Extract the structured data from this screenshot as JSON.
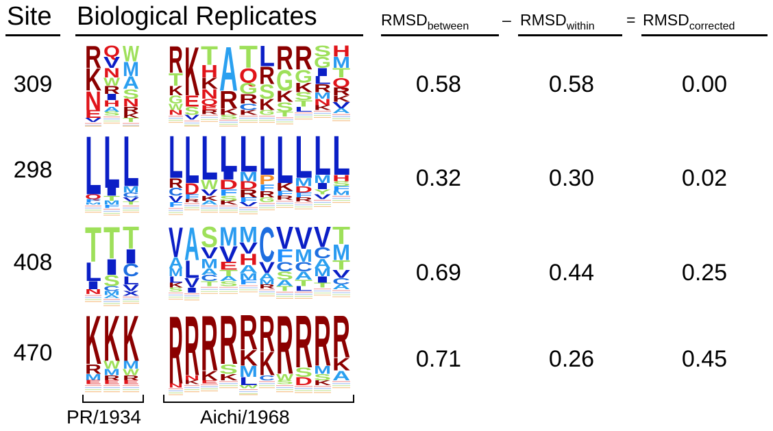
{
  "headers": {
    "site": "Site",
    "replicates": "Biological Replicates",
    "rmsd": "RMSD",
    "between": "between",
    "within": "within",
    "corrected": "corrected",
    "minus": "–",
    "equals": "="
  },
  "strains": [
    "PR/1934",
    "Aichi/1968"
  ],
  "rows": [
    {
      "site": "309",
      "between": "0.58",
      "within": "0.58",
      "corrected": "0.00",
      "logos": [
        [
          [
            "R",
            0.28
          ],
          [
            "K",
            0.28
          ],
          [
            "N",
            0.24
          ],
          [
            "E",
            0.1
          ],
          [
            "V",
            0.05
          ]
        ],
        [
          [
            "Q",
            0.14
          ],
          [
            "V",
            0.14
          ],
          [
            "N",
            0.12
          ],
          [
            "W",
            0.1
          ],
          [
            "R",
            0.1
          ],
          [
            "I",
            0.08
          ],
          [
            "H",
            0.08
          ],
          [
            "A",
            0.06
          ],
          [
            "S",
            0.05
          ]
        ],
        [
          [
            "W",
            0.2
          ],
          [
            "M",
            0.18
          ],
          [
            "A",
            0.16
          ],
          [
            "S",
            0.12
          ],
          [
            "N",
            0.1
          ],
          [
            "R",
            0.08
          ],
          [
            "K",
            0.06
          ],
          [
            "T",
            0.05
          ]
        ],
        [
          [
            "R",
            0.34
          ],
          [
            "T",
            0.16
          ],
          [
            "K",
            0.12
          ],
          [
            "G",
            0.1
          ],
          [
            "W",
            0.08
          ],
          [
            "N",
            0.06
          ]
        ],
        [
          [
            "K",
            0.62
          ],
          [
            "E",
            0.14
          ],
          [
            "S",
            0.1
          ],
          [
            "V",
            0.06
          ]
        ],
        [
          [
            "T",
            0.24
          ],
          [
            "H",
            0.16
          ],
          [
            "K",
            0.14
          ],
          [
            "N",
            0.12
          ],
          [
            "Q",
            0.08
          ],
          [
            "E",
            0.06
          ],
          [
            "R",
            0.05
          ]
        ],
        [
          [
            "A",
            0.56
          ],
          [
            "R",
            0.22
          ],
          [
            "K",
            0.08
          ],
          [
            "S",
            0.05
          ]
        ],
        [
          [
            "T",
            0.28
          ],
          [
            "Q",
            0.18
          ],
          [
            "G",
            0.14
          ],
          [
            "R",
            0.12
          ],
          [
            "C",
            0.08
          ],
          [
            "K",
            0.06
          ]
        ],
        [
          [
            "L",
            0.26
          ],
          [
            "R",
            0.22
          ],
          [
            "S",
            0.18
          ],
          [
            "K",
            0.14
          ],
          [
            "G",
            0.06
          ]
        ],
        [
          [
            "R",
            0.3
          ],
          [
            "G",
            0.26
          ],
          [
            "K",
            0.14
          ],
          [
            "S",
            0.12
          ],
          [
            "T",
            0.06
          ]
        ],
        [
          [
            "R",
            0.3
          ],
          [
            "G",
            0.16
          ],
          [
            "K",
            0.12
          ],
          [
            "S",
            0.1
          ],
          [
            "T",
            0.08
          ],
          [
            "L",
            0.06
          ]
        ],
        [
          [
            "S",
            0.14
          ],
          [
            "G",
            0.14
          ],
          [
            "I",
            0.1
          ],
          [
            "L",
            0.1
          ],
          [
            "R",
            0.1
          ],
          [
            "M",
            0.08
          ],
          [
            "N",
            0.08
          ],
          [
            "K",
            0.06
          ]
        ],
        [
          [
            "H",
            0.14
          ],
          [
            "M",
            0.14
          ],
          [
            "T",
            0.12
          ],
          [
            "Q",
            0.12
          ],
          [
            "R",
            0.1
          ],
          [
            "K",
            0.08
          ],
          [
            "V",
            0.08
          ],
          [
            "A",
            0.06
          ]
        ]
      ]
    },
    {
      "site": "298",
      "between": "0.32",
      "within": "0.30",
      "corrected": "0.02",
      "logos": [
        [
          [
            "L",
            0.74
          ],
          [
            "Q",
            0.06
          ],
          [
            "F",
            0.04
          ],
          [
            "M",
            0.03
          ]
        ],
        [
          [
            "L",
            0.66
          ],
          [
            "I",
            0.1
          ],
          [
            "T",
            0.06
          ],
          [
            "M",
            0.05
          ],
          [
            "F",
            0.04
          ]
        ],
        [
          [
            "L",
            0.64
          ],
          [
            "M",
            0.08
          ],
          [
            "C",
            0.06
          ],
          [
            "V",
            0.05
          ],
          [
            "T",
            0.04
          ]
        ],
        [
          [
            "L",
            0.54
          ],
          [
            "R",
            0.12
          ],
          [
            "C",
            0.1
          ],
          [
            "V",
            0.08
          ],
          [
            "F",
            0.06
          ]
        ],
        [
          [
            "L",
            0.6
          ],
          [
            "D",
            0.14
          ],
          [
            "F",
            0.06
          ],
          [
            "R",
            0.04
          ]
        ],
        [
          [
            "L",
            0.56
          ],
          [
            "W",
            0.12
          ],
          [
            "V",
            0.08
          ],
          [
            "K",
            0.06
          ],
          [
            "A",
            0.05
          ]
        ],
        [
          [
            "L",
            0.46
          ],
          [
            "I",
            0.1
          ],
          [
            "D",
            0.12
          ],
          [
            "F",
            0.08
          ],
          [
            "S",
            0.06
          ],
          [
            "K",
            0.05
          ]
        ],
        [
          [
            "L",
            0.46
          ],
          [
            "M",
            0.12
          ],
          [
            "D",
            0.1
          ],
          [
            "R",
            0.1
          ],
          [
            "F",
            0.06
          ],
          [
            "V",
            0.05
          ]
        ],
        [
          [
            "L",
            0.5
          ],
          [
            "P",
            0.12
          ],
          [
            "F",
            0.08
          ],
          [
            "R",
            0.08
          ],
          [
            "G",
            0.06
          ]
        ],
        [
          [
            "L",
            0.6
          ],
          [
            "K",
            0.1
          ],
          [
            "F",
            0.06
          ],
          [
            "R",
            0.05
          ]
        ],
        [
          [
            "L",
            0.54
          ],
          [
            "M",
            0.1
          ],
          [
            "D",
            0.08
          ],
          [
            "F",
            0.06
          ],
          [
            "R",
            0.05
          ]
        ],
        [
          [
            "L",
            0.5
          ],
          [
            "M",
            0.1
          ],
          [
            "I",
            0.08
          ],
          [
            "Y",
            0.06
          ],
          [
            "V",
            0.06
          ]
        ],
        [
          [
            "L",
            0.5
          ],
          [
            "H",
            0.08
          ],
          [
            "S",
            0.06
          ],
          [
            "F",
            0.06
          ],
          [
            "M",
            0.05
          ]
        ]
      ]
    },
    {
      "site": "408",
      "between": "0.69",
      "within": "0.44",
      "corrected": "0.25",
      "logos": [
        [
          [
            "T",
            0.44
          ],
          [
            "L",
            0.24
          ],
          [
            "I",
            0.1
          ],
          [
            "N",
            0.06
          ]
        ],
        [
          [
            "T",
            0.4
          ],
          [
            "I",
            0.2
          ],
          [
            "S",
            0.14
          ],
          [
            "C",
            0.06
          ],
          [
            "M",
            0.05
          ],
          [
            "A",
            0.04
          ]
        ],
        [
          [
            "T",
            0.28
          ],
          [
            "I",
            0.18
          ],
          [
            "C",
            0.16
          ],
          [
            "L",
            0.1
          ],
          [
            "V",
            0.08
          ],
          [
            "X",
            0.06
          ]
        ],
        [
          [
            "V",
            0.38
          ],
          [
            "A",
            0.14
          ],
          [
            "M",
            0.1
          ],
          [
            "L",
            0.08
          ],
          [
            "K",
            0.06
          ],
          [
            "S",
            0.05
          ]
        ],
        [
          [
            "A",
            0.42
          ],
          [
            "L",
            0.22
          ],
          [
            "V",
            0.12
          ],
          [
            "I",
            0.06
          ]
        ],
        [
          [
            "S",
            0.26
          ],
          [
            "V",
            0.14
          ],
          [
            "M",
            0.12
          ],
          [
            "A",
            0.08
          ],
          [
            "C",
            0.08
          ],
          [
            "T",
            0.06
          ]
        ],
        [
          [
            "M",
            0.24
          ],
          [
            "V",
            0.2
          ],
          [
            "E",
            0.1
          ],
          [
            "T",
            0.08
          ],
          [
            "A",
            0.06
          ],
          [
            "S",
            0.06
          ]
        ],
        [
          [
            "M",
            0.2
          ],
          [
            "V",
            0.14
          ],
          [
            "H",
            0.14
          ],
          [
            "A",
            0.1
          ],
          [
            "M",
            0.08
          ],
          [
            "F",
            0.06
          ]
        ],
        [
          [
            "C",
            0.44
          ],
          [
            "V",
            0.14
          ],
          [
            "A",
            0.08
          ],
          [
            "M",
            0.06
          ],
          [
            "R",
            0.05
          ]
        ],
        [
          [
            "V",
            0.28
          ],
          [
            "F",
            0.16
          ],
          [
            "C",
            0.12
          ],
          [
            "S",
            0.1
          ],
          [
            "A",
            0.08
          ],
          [
            "T",
            0.06
          ]
        ],
        [
          [
            "V",
            0.28
          ],
          [
            "M",
            0.16
          ],
          [
            "C",
            0.12
          ],
          [
            "A",
            0.1
          ],
          [
            "T",
            0.08
          ],
          [
            "L",
            0.06
          ]
        ],
        [
          [
            "V",
            0.26
          ],
          [
            "C",
            0.14
          ],
          [
            "A",
            0.12
          ],
          [
            "M",
            0.1
          ],
          [
            "I",
            0.08
          ],
          [
            "T",
            0.06
          ]
        ],
        [
          [
            "T",
            0.22
          ],
          [
            "M",
            0.2
          ],
          [
            "T",
            0.12
          ],
          [
            "V",
            0.1
          ],
          [
            "C",
            0.08
          ],
          [
            "A",
            0.06
          ]
        ]
      ]
    },
    {
      "site": "470",
      "between": "0.71",
      "within": "0.26",
      "corrected": "0.45",
      "logos": [
        [
          [
            "K",
            0.62
          ],
          [
            "R",
            0.12
          ],
          [
            "M",
            0.08
          ],
          [
            "E",
            0.05
          ]
        ],
        [
          [
            "K",
            0.58
          ],
          [
            "W",
            0.1
          ],
          [
            "M",
            0.08
          ],
          [
            "R",
            0.06
          ],
          [
            "E",
            0.05
          ]
        ],
        [
          [
            "K",
            0.58
          ],
          [
            "M",
            0.1
          ],
          [
            "W",
            0.08
          ],
          [
            "R",
            0.06
          ],
          [
            "E",
            0.05
          ]
        ],
        [
          [
            "R",
            0.86
          ],
          [
            "N",
            0.05
          ]
        ],
        [
          [
            "R",
            0.76
          ],
          [
            "N",
            0.06
          ],
          [
            "K",
            0.05
          ]
        ],
        [
          [
            "R",
            0.7
          ],
          [
            "K",
            0.12
          ],
          [
            "E",
            0.04
          ]
        ],
        [
          [
            "R",
            0.62
          ],
          [
            "S",
            0.12
          ],
          [
            "K",
            0.08
          ]
        ],
        [
          [
            "R",
            0.44
          ],
          [
            "K",
            0.2
          ],
          [
            "M",
            0.14
          ],
          [
            "L",
            0.1
          ],
          [
            "W",
            0.04
          ]
        ],
        [
          [
            "R",
            0.46
          ],
          [
            "K",
            0.3
          ],
          [
            "C",
            0.06
          ]
        ],
        [
          [
            "R",
            0.74
          ],
          [
            "W",
            0.08
          ],
          [
            "S",
            0.05
          ]
        ],
        [
          [
            "R",
            0.66
          ],
          [
            "S",
            0.12
          ],
          [
            "D",
            0.1
          ]
        ],
        [
          [
            "R",
            0.64
          ],
          [
            "M",
            0.1
          ],
          [
            "S",
            0.08
          ],
          [
            "K",
            0.06
          ]
        ],
        [
          [
            "R",
            0.54
          ],
          [
            "K",
            0.16
          ],
          [
            "A",
            0.12
          ]
        ]
      ]
    }
  ],
  "colors": {
    "K": "#8b0000",
    "R": "#8b0000",
    "H": "#e0141a",
    "D": "#e0141a",
    "E": "#e0141a",
    "N": "#e0141a",
    "Q": "#e0141a",
    "L": "#0b1fc6",
    "I": "#0b1fc6",
    "V": "#0b1fc6",
    "F": "#1e90ff",
    "M": "#2a9bf0",
    "C": "#1e6ee0",
    "A": "#2aa0f0",
    "W": "#9ee05a",
    "Y": "#9ee05a",
    "P": "#f28c28",
    "S": "#9ee05a",
    "T": "#9ee05a",
    "G": "#9ee05a",
    "X": "#0b1fc6"
  }
}
